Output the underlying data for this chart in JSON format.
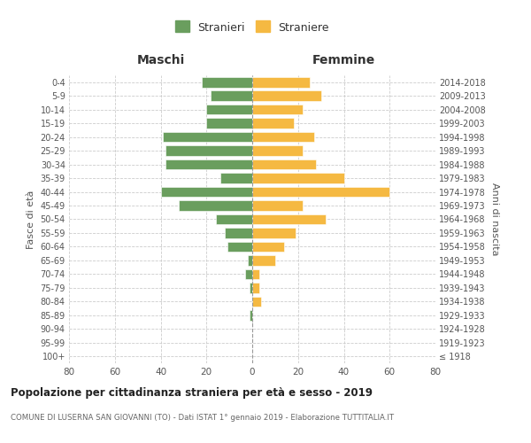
{
  "age_groups": [
    "100+",
    "95-99",
    "90-94",
    "85-89",
    "80-84",
    "75-79",
    "70-74",
    "65-69",
    "60-64",
    "55-59",
    "50-54",
    "45-49",
    "40-44",
    "35-39",
    "30-34",
    "25-29",
    "20-24",
    "15-19",
    "10-14",
    "5-9",
    "0-4"
  ],
  "birth_years": [
    "≤ 1918",
    "1919-1923",
    "1924-1928",
    "1929-1933",
    "1934-1938",
    "1939-1943",
    "1944-1948",
    "1949-1953",
    "1954-1958",
    "1959-1963",
    "1964-1968",
    "1969-1973",
    "1974-1978",
    "1979-1983",
    "1984-1988",
    "1989-1993",
    "1994-1998",
    "1999-2003",
    "2004-2008",
    "2009-2013",
    "2014-2018"
  ],
  "maschi": [
    0,
    0,
    0,
    1,
    0,
    1,
    3,
    2,
    11,
    12,
    16,
    32,
    40,
    14,
    38,
    38,
    39,
    20,
    20,
    18,
    22
  ],
  "femmine": [
    0,
    0,
    0,
    0,
    4,
    3,
    3,
    10,
    14,
    19,
    32,
    22,
    60,
    40,
    28,
    22,
    27,
    18,
    22,
    30,
    25
  ],
  "maschi_color": "#6a9e5e",
  "femmine_color": "#f5b942",
  "title": "Popolazione per cittadinanza straniera per età e sesso - 2019",
  "subtitle": "COMUNE DI LUSERNA SAN GIOVANNI (TO) - Dati ISTAT 1° gennaio 2019 - Elaborazione TUTTITALIA.IT",
  "xlabel_left": "Maschi",
  "xlabel_right": "Femmine",
  "ylabel_left": "Fasce di età",
  "ylabel_right": "Anni di nascita",
  "xlim": 80,
  "legend_stranieri": "Stranieri",
  "legend_straniere": "Straniere",
  "background_color": "#ffffff",
  "grid_color": "#cccccc"
}
